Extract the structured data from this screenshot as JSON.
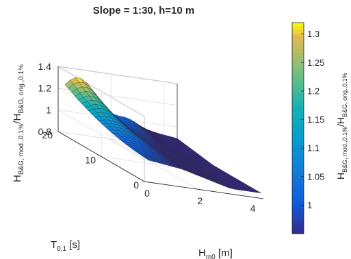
{
  "chart_data": {
    "type": "surface",
    "title": "Slope = 1:30, h=10 m",
    "xlabel": "H",
    "xlabel_sub": "m0",
    "xlabel_unit": " [m]",
    "ylabel": "T",
    "ylabel_sub": "0,1",
    "ylabel_unit": " [s]",
    "zlabel_parts": [
      {
        "t": "H",
        "sub": false
      },
      {
        "t": "B&G, mod.,0.1%",
        "sub": true
      },
      {
        "t": "/H",
        "sub": false
      },
      {
        "t": "B&G, orig.,0.1%",
        "sub": true
      }
    ],
    "colorbar_label_parts": [
      {
        "t": "H",
        "sub": false
      },
      {
        "t": "B&G, mod.,0.1%",
        "sub": true
      },
      {
        "t": "/H",
        "sub": false
      },
      {
        "t": "B&G, orig.,0.1%",
        "sub": true
      }
    ],
    "xlim": [
      0,
      4.5
    ],
    "ylim": [
      0,
      20
    ],
    "zlim": [
      0.8,
      1.4
    ],
    "xticks": [
      0,
      2,
      4
    ],
    "yticks": [
      0,
      10,
      20
    ],
    "zticks": [
      0.8,
      1,
      1.2,
      1.4
    ],
    "colorbar_ticks": [
      1,
      1.05,
      1.1,
      1.15,
      1.2,
      1.25,
      1.3
    ],
    "colorbar_range": [
      0.95,
      1.32
    ],
    "colormap": "parula",
    "grid": true,
    "surface": {
      "x_range": [
        0.25,
        4.5
      ],
      "y_range": [
        0.5,
        20
      ],
      "nx": 22,
      "ny": 26,
      "z_min": 0.84,
      "z_max": 1.32,
      "peak_at": {
        "x": 0.8,
        "y": 20,
        "z": 1.32
      },
      "corner_values": [
        {
          "x": 0.25,
          "y": 0.5,
          "z": 0.98
        },
        {
          "x": 4.5,
          "y": 0.5,
          "z": 0.88
        },
        {
          "x": 4.5,
          "y": 20,
          "z": 0.98
        },
        {
          "x": 0.25,
          "y": 20,
          "z": 1.2
        }
      ]
    }
  }
}
